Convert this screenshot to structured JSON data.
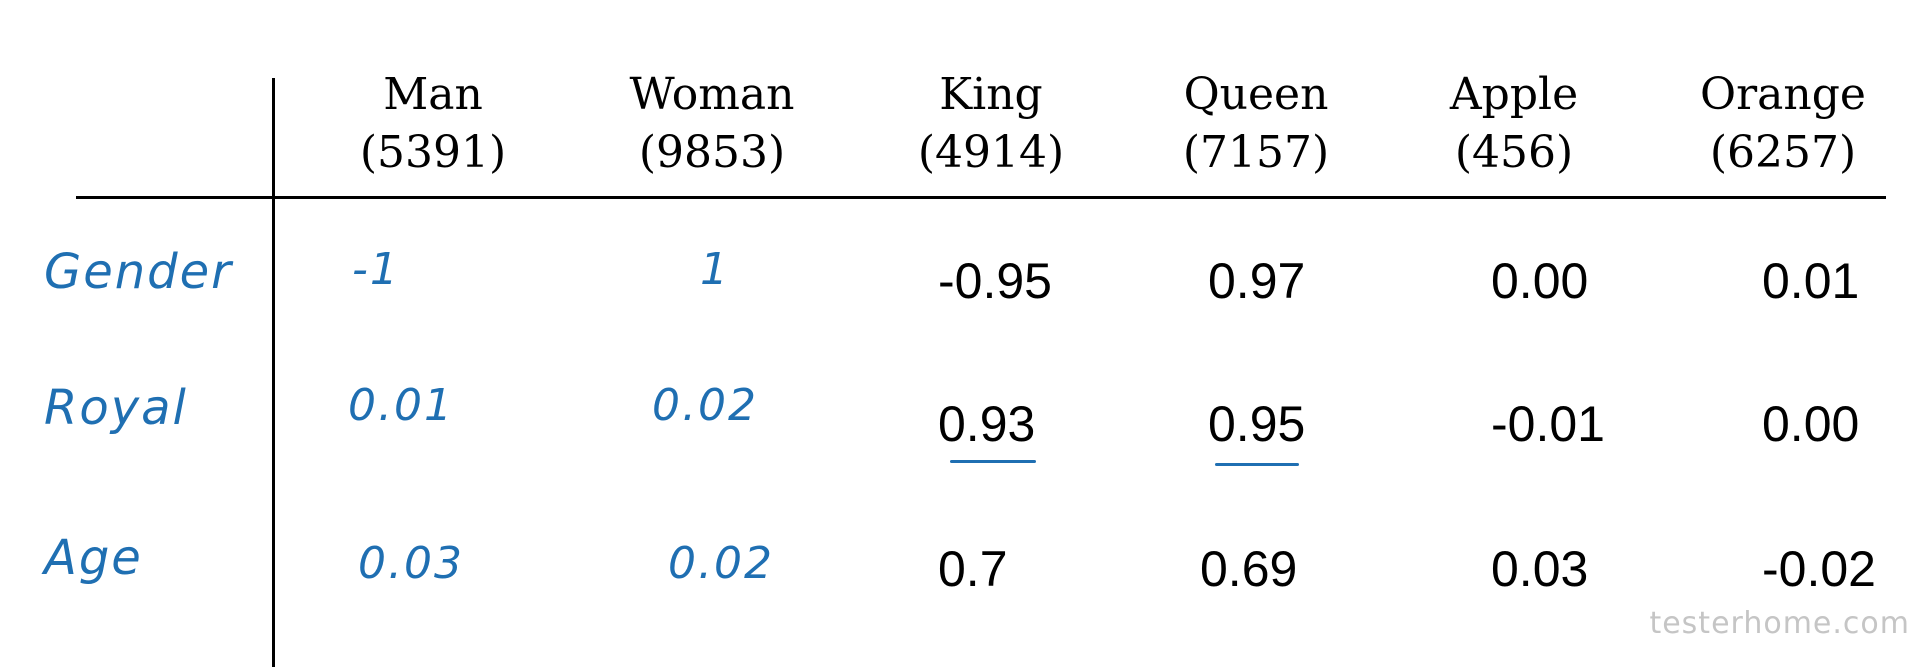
{
  "columns": [
    {
      "word": "Man",
      "index": "(5391)"
    },
    {
      "word": "Woman",
      "index": "(9853)"
    },
    {
      "word": "King",
      "index": "(4914)"
    },
    {
      "word": "Queen",
      "index": "(7157)"
    },
    {
      "word": "Apple",
      "index": "(456)"
    },
    {
      "word": "Orange",
      "index": "(6257)"
    }
  ],
  "rows": [
    {
      "label": "Gender",
      "values": [
        "-1",
        "1",
        "-0.95",
        "0.97",
        "0.00",
        "0.01"
      ]
    },
    {
      "label": "Royal",
      "values": [
        "0.01",
        "0.02",
        "0.93",
        "0.95",
        "-0.01",
        "0.00"
      ]
    },
    {
      "label": "Age",
      "values": [
        "0.03",
        "0.02",
        "0.7",
        "0.69",
        "0.03",
        "-0.02"
      ]
    }
  ],
  "underlined": [
    {
      "row": 1,
      "col": 2
    },
    {
      "row": 1,
      "col": 3
    }
  ],
  "watermark": "testerhome.com",
  "colors": {
    "ink": "#000000",
    "handwriting": "#1f6fb2"
  }
}
